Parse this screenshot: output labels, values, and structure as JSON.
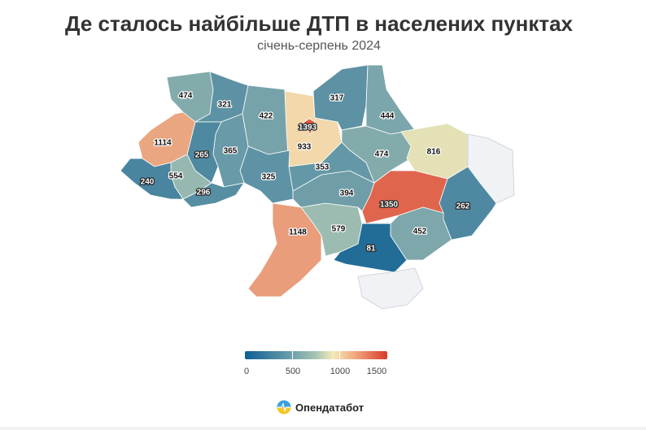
{
  "title": "Де сталось найбільше ДТП в населених пунктах",
  "subtitle": "січень-серпень 2024",
  "map": {
    "regions": [
      {
        "value": 474
      },
      {
        "value": 321
      },
      {
        "value": 422
      },
      {
        "value": 933
      },
      {
        "value": 317
      },
      {
        "value": 444
      },
      {
        "value": 474
      },
      {
        "value": 816
      },
      {
        "value": null
      },
      {
        "value": 262
      },
      {
        "value": 1350
      },
      {
        "value": 452
      },
      {
        "value": 81
      },
      {
        "value": null
      },
      {
        "value": 579
      },
      {
        "value": 1148
      },
      {
        "value": 394
      },
      {
        "value": 353
      },
      {
        "value": 325
      },
      {
        "value": 365
      },
      {
        "value": 265
      },
      {
        "value": 1114
      },
      {
        "value": 554
      },
      {
        "value": 296
      },
      {
        "value": 240
      },
      {
        "value": 1393
      }
    ],
    "no_data_color": "#f1f2f6",
    "color_scale": [
      "#0e5f94",
      "#a9c4b4",
      "#f5eab8",
      "#d93b2b"
    ]
  },
  "legend": {
    "ticks": [
      "0",
      "500",
      "1000",
      "1500"
    ],
    "min": 0,
    "max": 1500
  },
  "brand": {
    "name": "Опендатабот"
  }
}
